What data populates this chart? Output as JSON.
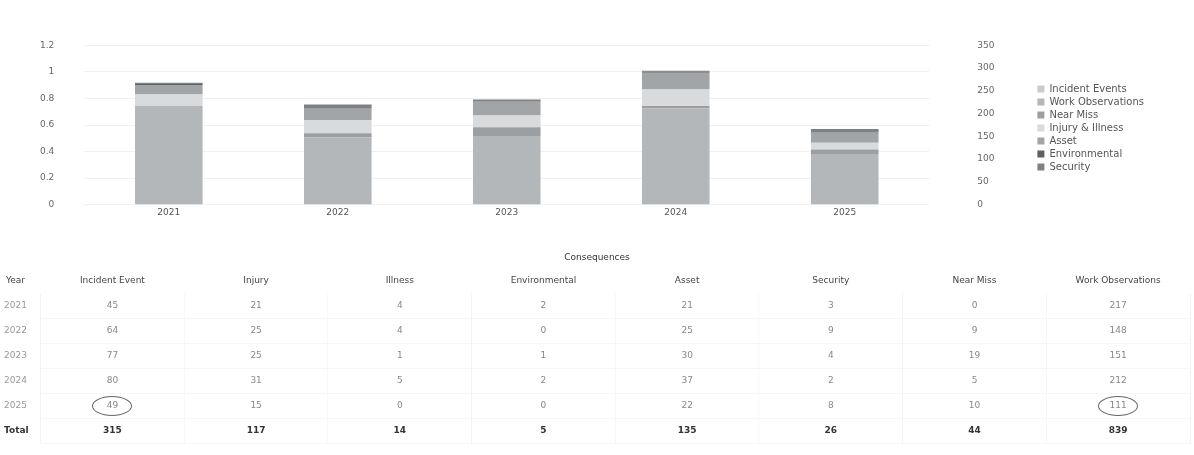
{
  "chart_data": [
    {
      "type": "bar",
      "stacked": true,
      "categories": [
        "2021",
        "2022",
        "2023",
        "2024",
        "2025"
      ],
      "ylim": [
        0,
        1.2
      ],
      "yticks": [
        0,
        0.2,
        0.4,
        0.6,
        0.8,
        1,
        1.2
      ],
      "y2lim": [
        0,
        350
      ],
      "y2ticks": [
        0,
        50,
        100,
        150,
        200,
        250,
        300,
        350
      ],
      "grid": "y",
      "legend": "right",
      "series": [
        {
          "name": "Incident Events",
          "color": "#c9cbcd",
          "axis": "y2",
          "values": [
            null,
            null,
            null,
            null,
            null
          ]
        },
        {
          "name": "Work Observations",
          "color": "#b4b7ba",
          "axis": "y2",
          "values": [
            217,
            148,
            151,
            212,
            111
          ]
        },
        {
          "name": "Near Miss",
          "color": "#9c9fa2",
          "axis": "y2",
          "values": [
            0,
            9,
            19,
            5,
            10
          ]
        },
        {
          "name": "Injury & Illness",
          "color": "#d8dadc",
          "axis": "y2",
          "values": [
            25,
            29,
            26,
            36,
            15
          ]
        },
        {
          "name": "Asset",
          "color": "#a2a5a8",
          "axis": "y2",
          "values": [
            21,
            25,
            30,
            37,
            22
          ]
        },
        {
          "name": "Environmental",
          "color": "#5e6164",
          "axis": "y2",
          "values": [
            2,
            0,
            1,
            2,
            0
          ]
        },
        {
          "name": "Security",
          "color": "#7e8184",
          "axis": "y2",
          "values": [
            3,
            9,
            4,
            2,
            8
          ]
        }
      ]
    },
    {
      "type": "heatmap",
      "title": "Consequences",
      "ylabel": "Year",
      "data_labels": true,
      "categories": [
        "Incident Event",
        "Injury",
        "Illness",
        "Environmental",
        "Asset",
        "Security",
        "Near Miss",
        "Work Observations"
      ],
      "y_categories": [
        "2021",
        "2022",
        "2023",
        "2024",
        "2025",
        "Total"
      ],
      "cells": [
        [
          45,
          21,
          4,
          2,
          21,
          3,
          0,
          217
        ],
        [
          64,
          25,
          4,
          0,
          25,
          9,
          9,
          148
        ],
        [
          77,
          25,
          1,
          1,
          30,
          4,
          19,
          151
        ],
        [
          80,
          31,
          5,
          2,
          37,
          2,
          5,
          212
        ],
        [
          49,
          15,
          0,
          0,
          22,
          8,
          10,
          111
        ],
        [
          315,
          117,
          14,
          5,
          135,
          26,
          44,
          839
        ]
      ]
    }
  ]
}
